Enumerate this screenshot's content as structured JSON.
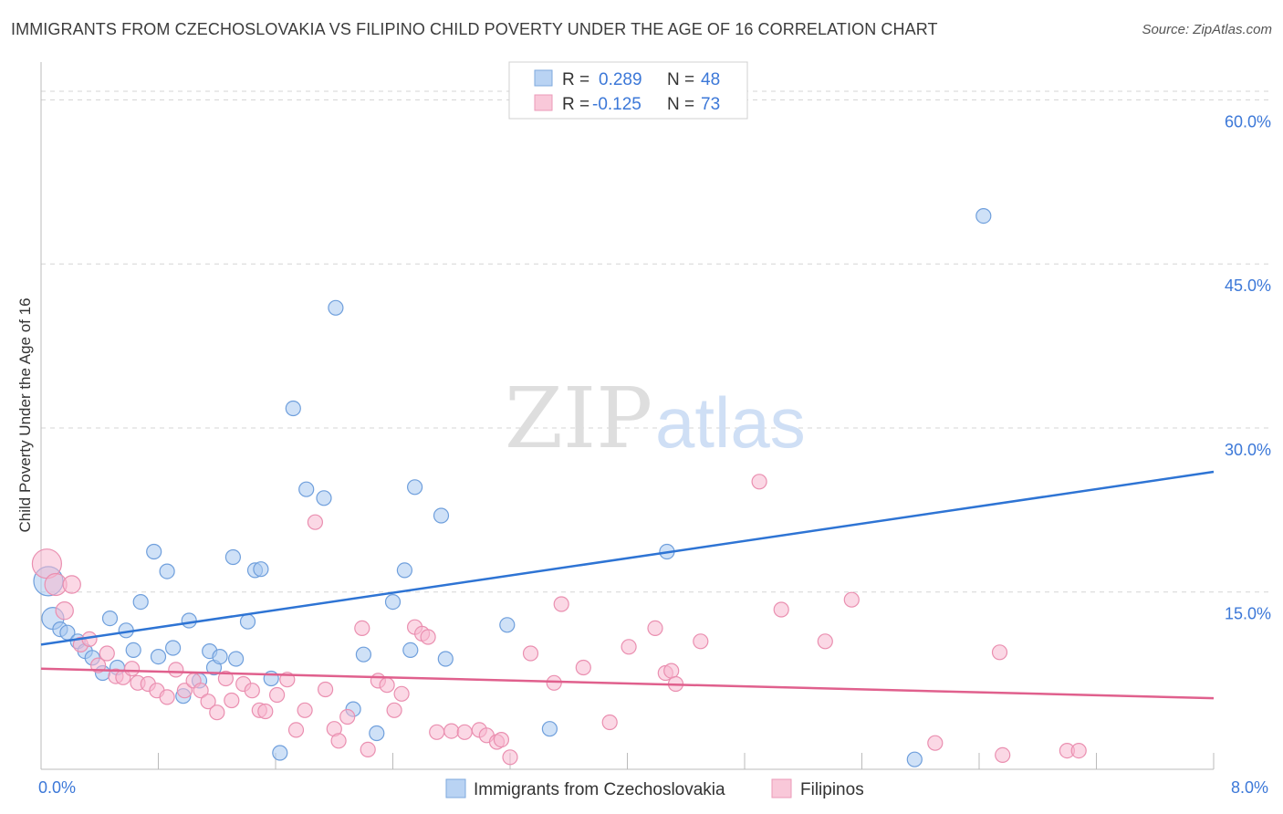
{
  "header": {
    "title": "IMMIGRANTS FROM CZECHOSLOVAKIA VS FILIPINO CHILD POVERTY UNDER THE AGE OF 16 CORRELATION CHART",
    "source": "Source: ZipAtlas.com"
  },
  "watermark": {
    "zip": "ZIP",
    "atlas": "atlas"
  },
  "chart_data": {
    "type": "scatter",
    "ylabel": "Child Poverty Under the Age of 16",
    "xlim": [
      0,
      8
    ],
    "ylim": [
      0,
      64
    ],
    "x_tick_labels": [
      "0.0%",
      "8.0%"
    ],
    "y_ticks": [
      15,
      30,
      45,
      60
    ],
    "y_tick_labels": [
      "15.0%",
      "30.0%",
      "45.0%",
      "60.0%"
    ],
    "grid": "horizontal dashed",
    "legend": {
      "placement": "top-center",
      "entries": [
        {
          "r_label": "R =",
          "r_value": "0.289",
          "n_label": "N =",
          "n_value": "48"
        },
        {
          "r_label": "R =",
          "r_value": "-0.125",
          "n_label": "N =",
          "n_value": "73"
        }
      ]
    },
    "series": [
      {
        "name": "Immigrants from Czechoslovakia",
        "color": "#a8c8f0",
        "stroke": "#6f9fdc",
        "trend_color": "#2e74d4",
        "trend": {
          "x": [
            0,
            8
          ],
          "y": [
            11.4,
            27.2
          ]
        },
        "points": [
          [
            0.05,
            17.2,
            2
          ],
          [
            0.08,
            13.8,
            1.5
          ],
          [
            0.13,
            12.8,
            1
          ],
          [
            0.18,
            12.5,
            1
          ],
          [
            0.25,
            11.7,
            1
          ],
          [
            0.3,
            10.8,
            1
          ],
          [
            0.35,
            10.2,
            1
          ],
          [
            0.42,
            8.8,
            1
          ],
          [
            0.47,
            13.8,
            1
          ],
          [
            0.52,
            9.3,
            1
          ],
          [
            0.58,
            12.7,
            1
          ],
          [
            0.63,
            10.9,
            1
          ],
          [
            0.68,
            15.3,
            1
          ],
          [
            0.77,
            19.9,
            1
          ],
          [
            0.8,
            10.3,
            1
          ],
          [
            0.86,
            18.1,
            1
          ],
          [
            0.9,
            11.1,
            1
          ],
          [
            0.97,
            6.7,
            1
          ],
          [
            1.01,
            13.6,
            1
          ],
          [
            1.08,
            8.1,
            1
          ],
          [
            1.15,
            10.8,
            1
          ],
          [
            1.18,
            9.3,
            1
          ],
          [
            1.22,
            10.3,
            1
          ],
          [
            1.31,
            19.4,
            1
          ],
          [
            1.33,
            10.1,
            1
          ],
          [
            1.41,
            13.5,
            1
          ],
          [
            1.46,
            18.2,
            1
          ],
          [
            1.5,
            18.3,
            1
          ],
          [
            1.57,
            8.3,
            1
          ],
          [
            1.63,
            1.5,
            1
          ],
          [
            1.72,
            33.0,
            1
          ],
          [
            1.81,
            25.6,
            1
          ],
          [
            1.93,
            24.8,
            1
          ],
          [
            2.01,
            42.2,
            1
          ],
          [
            2.13,
            5.5,
            1
          ],
          [
            2.2,
            10.5,
            1
          ],
          [
            2.29,
            3.3,
            1
          ],
          [
            2.4,
            15.3,
            1
          ],
          [
            2.48,
            18.2,
            1
          ],
          [
            2.52,
            10.9,
            1
          ],
          [
            2.55,
            25.8,
            1
          ],
          [
            2.73,
            23.2,
            1
          ],
          [
            2.76,
            10.1,
            1
          ],
          [
            3.18,
            13.2,
            1
          ],
          [
            3.47,
            3.7,
            1
          ],
          [
            4.27,
            19.9,
            1
          ],
          [
            5.96,
            0.9,
            1
          ],
          [
            6.43,
            50.6,
            1
          ]
        ]
      },
      {
        "name": "Filipinos",
        "color": "#f7b8cf",
        "stroke": "#ea8fb0",
        "trend_color": "#e0608d",
        "trend": {
          "x": [
            0,
            8
          ],
          "y": [
            9.2,
            6.5
          ]
        },
        "points": [
          [
            0.04,
            18.8,
            2
          ],
          [
            0.1,
            16.9,
            1.5
          ],
          [
            0.21,
            16.9,
            1.2
          ],
          [
            0.16,
            14.5,
            1.2
          ],
          [
            0.27,
            11.4,
            1
          ],
          [
            0.33,
            11.9,
            1
          ],
          [
            0.39,
            9.5,
            1
          ],
          [
            0.45,
            10.6,
            1
          ],
          [
            0.51,
            8.5,
            1
          ],
          [
            0.56,
            8.4,
            1
          ],
          [
            0.62,
            9.2,
            1
          ],
          [
            0.66,
            7.9,
            1
          ],
          [
            0.73,
            7.8,
            1
          ],
          [
            0.79,
            7.2,
            1
          ],
          [
            0.86,
            6.6,
            1
          ],
          [
            0.92,
            9.1,
            1
          ],
          [
            0.98,
            7.2,
            1
          ],
          [
            1.04,
            8.1,
            1
          ],
          [
            1.09,
            7.2,
            1
          ],
          [
            1.14,
            6.2,
            1
          ],
          [
            1.2,
            5.2,
            1
          ],
          [
            1.26,
            8.3,
            1
          ],
          [
            1.3,
            6.3,
            1
          ],
          [
            1.38,
            7.8,
            1
          ],
          [
            1.44,
            7.2,
            1
          ],
          [
            1.49,
            5.4,
            1
          ],
          [
            1.53,
            5.3,
            1
          ],
          [
            1.61,
            6.8,
            1
          ],
          [
            1.68,
            8.2,
            1
          ],
          [
            1.74,
            3.6,
            1
          ],
          [
            1.8,
            5.4,
            1
          ],
          [
            1.87,
            22.6,
            1
          ],
          [
            1.94,
            7.3,
            1
          ],
          [
            2.0,
            3.7,
            1
          ],
          [
            2.03,
            2.6,
            1
          ],
          [
            2.09,
            4.8,
            1
          ],
          [
            2.19,
            12.9,
            1
          ],
          [
            2.23,
            1.8,
            1
          ],
          [
            2.3,
            8.1,
            1
          ],
          [
            2.36,
            7.7,
            1
          ],
          [
            2.41,
            5.4,
            1
          ],
          [
            2.46,
            6.9,
            1
          ],
          [
            2.55,
            13.0,
            1
          ],
          [
            2.6,
            12.4,
            1
          ],
          [
            2.64,
            12.1,
            1
          ],
          [
            2.7,
            3.4,
            1
          ],
          [
            2.8,
            3.5,
            1
          ],
          [
            2.89,
            3.4,
            1
          ],
          [
            2.99,
            3.6,
            1
          ],
          [
            3.04,
            3.1,
            1
          ],
          [
            3.11,
            2.5,
            1
          ],
          [
            3.14,
            2.7,
            1
          ],
          [
            3.2,
            1.1,
            1
          ],
          [
            3.34,
            10.6,
            1
          ],
          [
            3.5,
            7.9,
            1
          ],
          [
            3.55,
            15.1,
            1
          ],
          [
            3.7,
            9.3,
            1
          ],
          [
            3.88,
            4.3,
            1
          ],
          [
            4.01,
            11.2,
            1
          ],
          [
            4.19,
            12.9,
            1
          ],
          [
            4.26,
            8.8,
            1
          ],
          [
            4.3,
            9.0,
            1
          ],
          [
            4.33,
            7.8,
            1
          ],
          [
            4.5,
            11.7,
            1
          ],
          [
            4.9,
            26.3,
            1
          ],
          [
            5.05,
            14.6,
            1
          ],
          [
            5.35,
            11.7,
            1
          ],
          [
            5.53,
            15.5,
            1
          ],
          [
            6.1,
            2.4,
            1
          ],
          [
            6.54,
            10.7,
            1
          ],
          [
            6.56,
            1.3,
            1
          ],
          [
            7.0,
            1.7,
            1
          ],
          [
            7.08,
            1.7,
            1
          ]
        ]
      }
    ]
  }
}
